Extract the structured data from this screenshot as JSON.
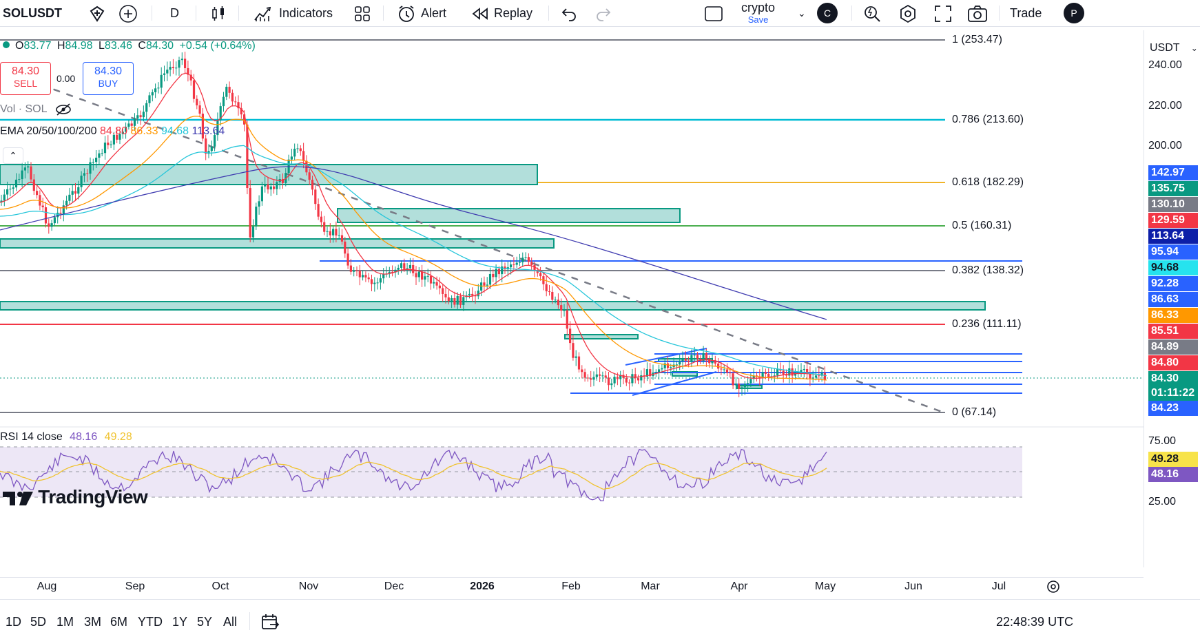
{
  "toolbar": {
    "symbol": "SOLUSDT",
    "interval": "D",
    "indicators_label": "Indicators",
    "alert_label": "Alert",
    "replay_label": "Replay",
    "layout_name": "crypto",
    "layout_save": "Save",
    "avatar_letter": "C",
    "trade_label": "Trade",
    "publish_letter": "P"
  },
  "legend": {
    "open_label": "O",
    "open": "83.77",
    "high_label": "H",
    "high": "84.98",
    "low_label": "L",
    "low": "83.46",
    "close_label": "C",
    "close": "84.30",
    "change": "+0.54 (+0.64%)",
    "sell_price": "84.30",
    "sell_label": "SELL",
    "spread": "0.00",
    "buy_price": "84.30",
    "buy_label": "BUY",
    "vol_label": "Vol · SOL",
    "ema_label": "EMA 20/50/100/200",
    "ema20": "84.80",
    "ema50": "86.33",
    "ema100": "94.68",
    "ema200": "113.64",
    "rsi_label": "RSI 14 close",
    "rsi": "48.16",
    "rsi_ma": "49.28"
  },
  "fib_levels": [
    {
      "label": "1 (253.47)",
      "color": "#787b86"
    },
    {
      "label": "0.786 (213.60)",
      "color": "#00bcd4"
    },
    {
      "label": "0.618 (182.29)",
      "color": "#f0b429"
    },
    {
      "label": "0.5 (160.31)",
      "color": "#4caf50"
    },
    {
      "label": "0.382 (138.32)",
      "color": "#787b86"
    },
    {
      "label": "0.236 (111.11)",
      "color": "#f23645"
    },
    {
      "label": "0 (67.14)",
      "color": "#787b86"
    }
  ],
  "price_axis": {
    "currency": "USDT",
    "scale": [
      "240.00",
      "220.00",
      "200.00"
    ],
    "labels": [
      {
        "text": "142.97",
        "bg": "#2962ff"
      },
      {
        "text": "135.75",
        "bg": "#089981"
      },
      {
        "text": "130.10",
        "bg": "#787b86"
      },
      {
        "text": "129.59",
        "bg": "#f23645"
      },
      {
        "text": "113.64",
        "bg": "#0d1fa8"
      },
      {
        "text": "95.94",
        "bg": "#2962ff"
      },
      {
        "text": "94.68",
        "bg": "#26e3ee"
      },
      {
        "text": "92.28",
        "bg": "#2962ff"
      },
      {
        "text": "86.63",
        "bg": "#2962ff"
      },
      {
        "text": "86.33",
        "bg": "#ff9800"
      },
      {
        "text": "85.51",
        "bg": "#f23645"
      },
      {
        "text": "84.89",
        "bg": "#787b86"
      },
      {
        "text": "84.80",
        "bg": "#f23645"
      },
      {
        "text": "84.30",
        "bg": "#089981"
      },
      {
        "text": "01:11:22",
        "bg": "#089981"
      },
      {
        "text": "84.23",
        "bg": "#2962ff"
      }
    ],
    "rsi_scale": [
      "75.00",
      "25.00"
    ],
    "rsi_labels": [
      {
        "text": "49.28",
        "bg": "#f7e34a"
      },
      {
        "text": "48.16",
        "bg": "#7e57c2"
      }
    ]
  },
  "time_axis": [
    "Aug",
    "Sep",
    "Oct",
    "Nov",
    "Dec",
    "2026",
    "Jan_hidden",
    "Feb",
    "Mar",
    "Apr",
    "May",
    "Jun",
    "Jul"
  ],
  "time_labels": [
    "Aug",
    "Sep",
    "Oct",
    "Nov",
    "Dec",
    "2026",
    "Feb",
    "Mar",
    "Apr",
    "May",
    "Jun",
    "Jul"
  ],
  "bottom": {
    "ranges": [
      "1D",
      "5D",
      "1M",
      "3M",
      "6M",
      "YTD",
      "1Y",
      "5Y",
      "All"
    ],
    "clock": "22:48:39 UTC"
  },
  "watermark": "TradingView",
  "colors": {
    "up": "#089981",
    "down": "#f23645",
    "ema20": "#f23645",
    "ema50": "#ff9800",
    "ema100": "#26c6da",
    "ema200": "#3f3bb0",
    "rsi": "#7e57c2",
    "rsi_ma": "#f0c330"
  }
}
